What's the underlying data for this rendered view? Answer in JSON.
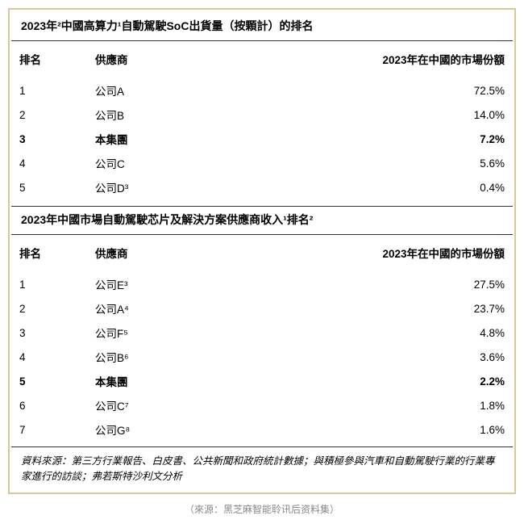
{
  "frame_border_color": "#d9c89a",
  "table1": {
    "title": "2023年²中國高算力¹自動駕駛SoC出貨量（按顆計）的排名",
    "columns": {
      "rank": "排名",
      "vendor": "供應商",
      "share": "2023年在中國的市場份額"
    },
    "rows": [
      {
        "rank": "1",
        "vendor": "公司A",
        "share": "72.5%",
        "bold": false
      },
      {
        "rank": "2",
        "vendor": "公司B",
        "share": "14.0%",
        "bold": false
      },
      {
        "rank": "3",
        "vendor": "本集團",
        "share": "7.2%",
        "bold": true
      },
      {
        "rank": "4",
        "vendor": "公司C",
        "share": "5.6%",
        "bold": false
      },
      {
        "rank": "5",
        "vendor": "公司D³",
        "share": "0.4%",
        "bold": false
      }
    ]
  },
  "table2": {
    "title": "2023年中國市場自動駕駛芯片及解決方案供應商收入¹排名²",
    "columns": {
      "rank": "排名",
      "vendor": "供應商",
      "share": "2023年在中國的市場份額"
    },
    "rows": [
      {
        "rank": "1",
        "vendor": "公司E³",
        "share": "27.5%",
        "bold": false
      },
      {
        "rank": "2",
        "vendor": "公司A⁴",
        "share": "23.7%",
        "bold": false
      },
      {
        "rank": "3",
        "vendor": "公司F⁵",
        "share": "4.8%",
        "bold": false
      },
      {
        "rank": "4",
        "vendor": "公司B⁶",
        "share": "3.6%",
        "bold": false
      },
      {
        "rank": "5",
        "vendor": "本集團",
        "share": "2.2%",
        "bold": true
      },
      {
        "rank": "6",
        "vendor": "公司C⁷",
        "share": "1.8%",
        "bold": false
      },
      {
        "rank": "7",
        "vendor": "公司G⁸",
        "share": "1.6%",
        "bold": false
      }
    ]
  },
  "footnote": "資料來源：第三方行業報告、白皮書、公共新聞和政府統計數據；與積極參與汽車和自動駕駛行業的行業專家進行的訪談；弗若斯特沙利文分析",
  "caption": "（來源：黑芝麻智能聆讯后资料集）"
}
